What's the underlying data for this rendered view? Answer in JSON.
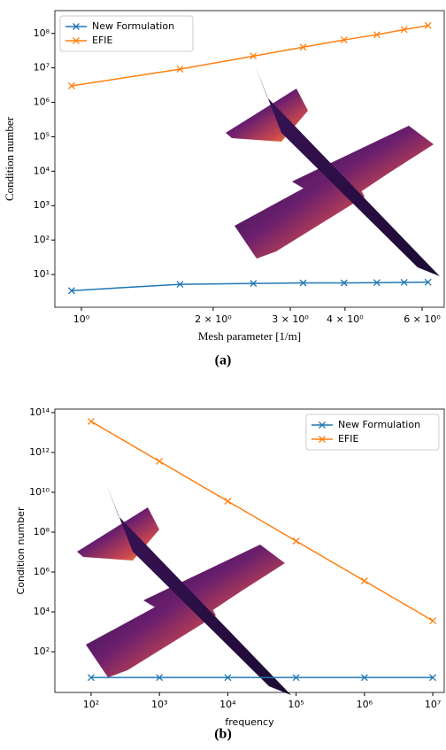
{
  "chart_data": [
    {
      "type": "line",
      "x_scale": "log",
      "y_scale": "log",
      "xlabel": "Mesh parameter [1/m]",
      "ylabel": "Condition number",
      "caption": "(a)",
      "legend": "upper left",
      "x": [
        0.95,
        1.68,
        2.47,
        3.21,
        3.98,
        4.73,
        5.46,
        6.19
      ],
      "series": [
        {
          "name": "New Formulation",
          "color": "#1f77b4",
          "values": [
            3.4,
            5.2,
            5.5,
            5.7,
            5.7,
            5.8,
            5.9,
            6.0
          ]
        },
        {
          "name": "EFIE",
          "color": "#ff7f0e",
          "values": [
            3000000,
            9200000,
            22000000,
            40000000,
            65000000,
            92000000,
            130000000,
            170000000
          ]
        }
      ],
      "xlim": [
        0.87,
        6.74
      ],
      "ylim": [
        1.12,
        460000000
      ],
      "xticks": [
        {
          "value": 1,
          "label": "10⁰"
        },
        {
          "value": 2,
          "label": "2 × 10⁰"
        },
        {
          "value": 3,
          "label": "3 × 10⁰"
        },
        {
          "value": 4,
          "label": "4 × 10⁰"
        },
        {
          "value": 6,
          "label": "6 × 10⁰"
        }
      ],
      "yticks": [
        {
          "value": 10,
          "label": "10¹"
        },
        {
          "value": 100,
          "label": "10²"
        },
        {
          "value": 1000,
          "label": "10³"
        },
        {
          "value": 10000,
          "label": "10⁴"
        },
        {
          "value": 100000,
          "label": "10⁵"
        },
        {
          "value": 1000000,
          "label": "10⁶"
        },
        {
          "value": 10000000,
          "label": "10⁷"
        },
        {
          "value": 100000000,
          "label": "10⁸"
        }
      ]
    },
    {
      "type": "line",
      "x_scale": "log",
      "y_scale": "log",
      "xlabel": "frequency",
      "ylabel": "Condition number",
      "caption": "(b)",
      "legend": "upper right",
      "x": [
        100,
        1000,
        10000,
        100000,
        1000000,
        10000000
      ],
      "series": [
        {
          "name": "New Formulation",
          "color": "#1f77b4",
          "values": [
            5.1,
            5.1,
            5.1,
            5.1,
            5.1,
            5.1
          ]
        },
        {
          "name": "EFIE",
          "color": "#ff7f0e",
          "values": [
            36000000000000,
            360000000000,
            3600000000,
            36000000,
            360000,
            3600
          ]
        }
      ],
      "xlim": [
        29.5,
        14700000
      ],
      "ylim": [
        0.91,
        150000000000000
      ],
      "xticks": [
        {
          "value": 100,
          "label": "10²"
        },
        {
          "value": 1000,
          "label": "10³"
        },
        {
          "value": 10000,
          "label": "10⁴"
        },
        {
          "value": 100000,
          "label": "10⁵"
        },
        {
          "value": 1000000,
          "label": "10⁶"
        },
        {
          "value": 10000000,
          "label": "10⁷"
        }
      ],
      "yticks": [
        {
          "value": 100,
          "label": "10²"
        },
        {
          "value": 10000,
          "label": "10⁴"
        },
        {
          "value": 1000000,
          "label": "10⁶"
        },
        {
          "value": 100000000,
          "label": "10⁸"
        },
        {
          "value": 10000000000,
          "label": "10¹⁰"
        },
        {
          "value": 1000000000000,
          "label": "10¹²"
        },
        {
          "value": 100000000000000,
          "label": "10¹⁴"
        }
      ]
    }
  ]
}
